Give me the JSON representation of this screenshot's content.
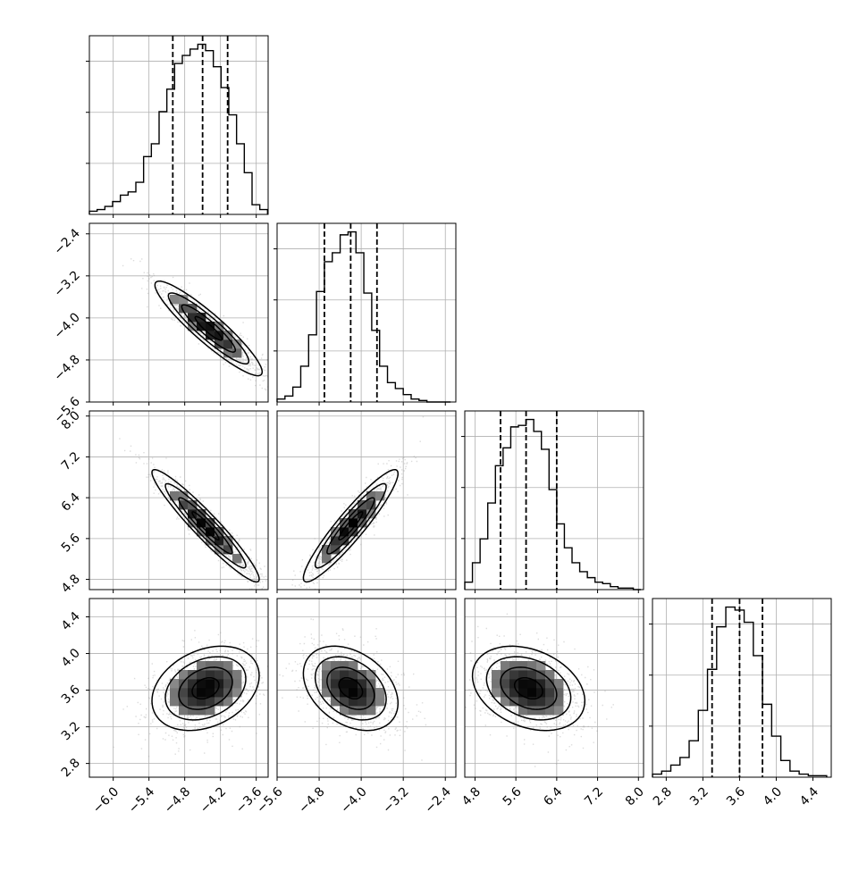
{
  "chart_data": {
    "type": "corner",
    "parameters": [
      "p1",
      "p2",
      "p3",
      "p4"
    ],
    "panel_axes": {
      "p1": {
        "range": [
          -6.4,
          -3.4
        ],
        "ticks": [
          -6.0,
          -5.4,
          -4.8,
          -4.2,
          -3.6
        ],
        "tick_labels": [
          "−6.0",
          "−5.4",
          "−4.8",
          "−4.2",
          "−3.6"
        ]
      },
      "p2": {
        "range": [
          -5.6,
          -2.2
        ],
        "ticks": [
          -5.6,
          -4.8,
          -4.0,
          -3.2,
          -2.4
        ],
        "tick_labels": [
          "−5.6",
          "−4.8",
          "−4.0",
          "−3.2",
          "−2.4"
        ]
      },
      "p3": {
        "range": [
          4.6,
          8.1
        ],
        "ticks": [
          4.8,
          5.6,
          6.4,
          7.2,
          8.0
        ],
        "tick_labels": [
          "4.8",
          "5.6",
          "6.4",
          "7.2",
          "8.0"
        ]
      },
      "p4": {
        "range": [
          2.65,
          4.6
        ],
        "ticks": [
          2.8,
          3.2,
          3.6,
          4.0,
          4.4
        ],
        "tick_labels": [
          "2.8",
          "3.2",
          "3.6",
          "4.0",
          "4.4"
        ]
      }
    },
    "quantiles": {
      "p1": [
        -5.0,
        -4.5,
        -4.08
      ],
      "p2": [
        -4.7,
        -4.2,
        -3.7
      ],
      "p3": [
        5.3,
        5.8,
        6.4
      ],
      "p4": [
        3.3,
        3.6,
        3.85
      ]
    },
    "histograms": {
      "p1": {
        "edges": [
          -6.4,
          -6.27,
          -6.14,
          -6.01,
          -5.88,
          -5.75,
          -5.62,
          -5.49,
          -5.36,
          -5.23,
          -5.1,
          -4.97,
          -4.84,
          -4.71,
          -4.58,
          -4.45,
          -4.32,
          -4.19,
          -4.06,
          -3.93,
          -3.8,
          -3.67,
          -3.54,
          -3.41
        ],
        "counts": [
          2,
          3,
          5,
          8,
          12,
          14,
          20,
          36,
          44,
          64,
          78,
          94,
          99,
          103,
          106,
          102,
          92,
          79,
          62,
          44,
          26,
          6,
          3
        ]
      },
      "p2": {
        "edges": [
          -5.6,
          -5.45,
          -5.3,
          -5.15,
          -5.0,
          -4.85,
          -4.7,
          -4.55,
          -4.4,
          -4.25,
          -4.1,
          -3.95,
          -3.8,
          -3.65,
          -3.5,
          -3.35,
          -3.2,
          -3.05,
          -2.9,
          -2.75,
          -2.6,
          -2.45,
          -2.3
        ],
        "counts": [
          2,
          4,
          10,
          24,
          45,
          74,
          94,
          100,
          112,
          114,
          100,
          73,
          48,
          24,
          13,
          9,
          5,
          2,
          1,
          0,
          0,
          0
        ]
      },
      "p3": {
        "edges": [
          4.6,
          4.75,
          4.9,
          5.05,
          5.2,
          5.35,
          5.5,
          5.65,
          5.8,
          5.95,
          6.1,
          6.25,
          6.4,
          6.55,
          6.7,
          6.85,
          7.0,
          7.15,
          7.3,
          7.45,
          7.6,
          7.75,
          7.9,
          8.05
        ],
        "counts": [
          5,
          18,
          34,
          58,
          83,
          95,
          109,
          110,
          114,
          106,
          94,
          67,
          44,
          28,
          18,
          12,
          8,
          5,
          4,
          2,
          1,
          1,
          0
        ]
      },
      "p4": {
        "edges": [
          2.65,
          2.75,
          2.85,
          2.95,
          3.05,
          3.15,
          3.25,
          3.35,
          3.45,
          3.55,
          3.65,
          3.75,
          3.85,
          3.95,
          4.05,
          4.15,
          4.25,
          4.35,
          4.45,
          4.55
        ],
        "counts": [
          2,
          4,
          8,
          13,
          24,
          44,
          71,
          99,
          112,
          110,
          102,
          80,
          48,
          27,
          11,
          4,
          2,
          1,
          1
        ]
      }
    },
    "pair_panels": [
      {
        "x": "p1",
        "y": "p2",
        "center": [
          -4.4,
          -4.2
        ],
        "sd": [
          0.45,
          0.45
        ],
        "corr": -0.92
      },
      {
        "x": "p1",
        "y": "p3",
        "center": [
          -4.45,
          5.85
        ],
        "sd": [
          0.45,
          0.55
        ],
        "corr": -0.95
      },
      {
        "x": "p2",
        "y": "p3",
        "center": [
          -4.2,
          5.85
        ],
        "sd": [
          0.45,
          0.55
        ],
        "corr": 0.93
      },
      {
        "x": "p1",
        "y": "p4",
        "center": [
          -4.45,
          3.62
        ],
        "sd": [
          0.45,
          0.23
        ],
        "corr": 0.3
      },
      {
        "x": "p2",
        "y": "p4",
        "center": [
          -4.2,
          3.62
        ],
        "sd": [
          0.45,
          0.23
        ],
        "corr": -0.35
      },
      {
        "x": "p3",
        "y": "p4",
        "center": [
          5.85,
          3.62
        ],
        "sd": [
          0.55,
          0.23
        ],
        "corr": -0.3
      }
    ],
    "contour_levels_sigma": [
      0.5,
      1.0,
      1.5,
      2.0
    ],
    "grid": true,
    "color": "#000000"
  }
}
